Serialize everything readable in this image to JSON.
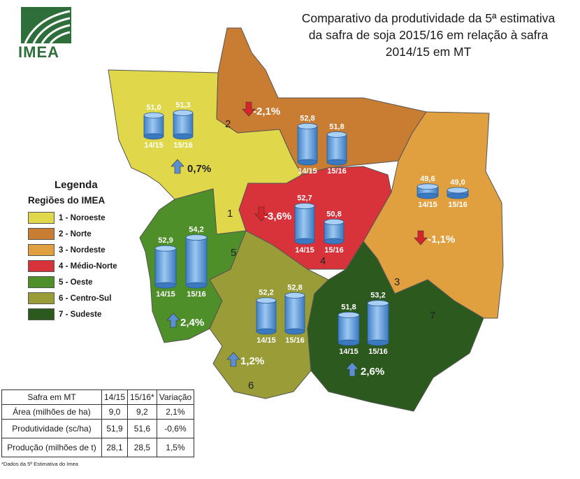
{
  "title": {
    "line1": "Comparativo da produtividade da 5ª estimativa",
    "line2": "da safra de soja 2015/16 em relação à safra",
    "line3": "2014/15 em MT"
  },
  "logo": {
    "text": "IMEA"
  },
  "legend": {
    "title": "Legenda",
    "subtitle": "Regiões do IMEA",
    "items": [
      {
        "label": "1 - Noroeste",
        "color": "#e0d84a"
      },
      {
        "label": "2 - Norte",
        "color": "#c97d32"
      },
      {
        "label": "3 - Nordeste",
        "color": "#e0a040"
      },
      {
        "label": "4 - Médio-Norte",
        "color": "#d8323a"
      },
      {
        "label": "5 - Oeste",
        "color": "#4e8f2a"
      },
      {
        "label": "6 - Centro-Sul",
        "color": "#9a9c38"
      },
      {
        "label": "7 - Sudeste",
        "color": "#2c5a1e"
      }
    ]
  },
  "regions": [
    {
      "number": "1",
      "name": "Noroeste",
      "v1415": "51,0",
      "v1516": "51,3",
      "variation": "0,7%",
      "direction": "up",
      "fill": "#e0d84a"
    },
    {
      "number": "2",
      "name": "Norte",
      "v1415": "52,8",
      "v1516": "51,8",
      "variation": "-2,1%",
      "direction": "down",
      "fill": "#c97d32"
    },
    {
      "number": "3",
      "name": "Nordeste",
      "v1415": "49,6",
      "v1516": "49,0",
      "variation": "-1,1%",
      "direction": "down",
      "fill": "#e0a040"
    },
    {
      "number": "4",
      "name": "Médio-Norte",
      "v1415": "52,7",
      "v1516": "50,8",
      "variation": "-3,6%",
      "direction": "down",
      "fill": "#d8323a"
    },
    {
      "number": "5",
      "name": "Oeste",
      "v1415": "52,9",
      "v1516": "54,2",
      "variation": "2,4%",
      "direction": "up",
      "fill": "#4e8f2a"
    },
    {
      "number": "6",
      "name": "Centro-Sul",
      "v1415": "52,2",
      "v1516": "52,8",
      "variation": "1,2%",
      "direction": "up",
      "fill": "#9a9c38"
    },
    {
      "number": "7",
      "name": "Sudeste",
      "v1415": "51,8",
      "v1516": "53,2",
      "variation": "2,6%",
      "direction": "up",
      "fill": "#2c5a1e"
    }
  ],
  "bar_labels": {
    "y1": "14/15",
    "y2": "15/16"
  },
  "table": {
    "headers": [
      "Safra em MT",
      "14/15",
      "15/16*",
      "Variação"
    ],
    "rows": [
      [
        "Área (milhões de ha)",
        "9,0",
        "9,2",
        "2,1%"
      ],
      [
        "Produtividade (sc/ha)",
        "51,9",
        "51,6",
        "-0,6%"
      ],
      [
        "Produção (milhões de t)",
        "28,1",
        "28,5",
        "1,5%"
      ]
    ]
  },
  "footnote": "*Dados da 5ª Estimativa do Imea"
}
